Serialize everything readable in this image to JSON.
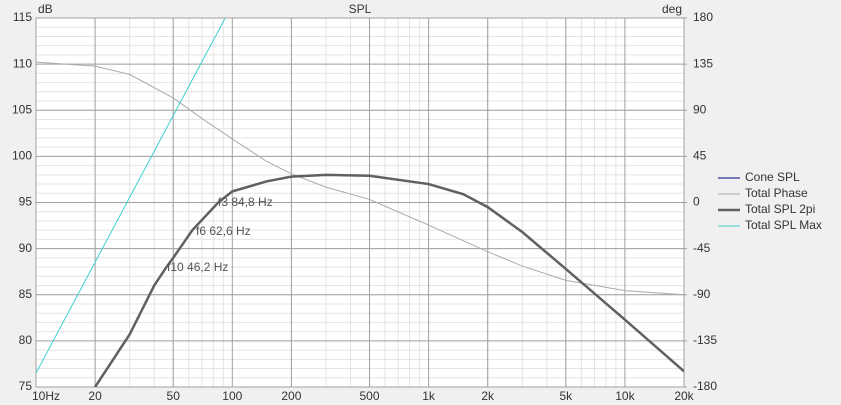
{
  "chart_data": {
    "type": "line",
    "title": "SPL",
    "y_unit": "dB",
    "y2_unit": "deg",
    "log_x": true,
    "grid": true,
    "minor_grid": true,
    "legend": "right",
    "xlim": [
      10,
      20000
    ],
    "xticks": [
      {
        "value": 10,
        "label": "10Hz"
      },
      20,
      50,
      100,
      200,
      500,
      {
        "value": 1000,
        "label": "1k"
      },
      {
        "value": 2000,
        "label": "2k"
      },
      {
        "value": 5000,
        "label": "5k"
      },
      {
        "value": 10000,
        "label": "10k"
      },
      {
        "value": 20000,
        "label": "20k"
      }
    ],
    "ylim": [
      75,
      115
    ],
    "yticks": [
      75,
      80,
      85,
      90,
      95,
      100,
      105,
      110,
      115
    ],
    "y2lim": [
      -180,
      180
    ],
    "y2ticks": [
      -180,
      -135,
      -90,
      -45,
      0,
      45,
      90,
      135,
      180
    ],
    "annotations": [
      "f3 84,8 Hz",
      "f6 62,6 Hz",
      "f10 46,2 Hz"
    ],
    "series": [
      {
        "name": "Cone SPL",
        "color": "#000080",
        "x": [],
        "values": []
      },
      {
        "name": "Total Phase",
        "color": "#aaaaaa",
        "axis": "y2",
        "x": [
          10,
          20,
          30,
          50,
          70,
          100,
          150,
          200,
          300,
          500,
          1000,
          2000,
          3000,
          5000,
          10000,
          20000
        ],
        "values": [
          137,
          133,
          125,
          102,
          82,
          62,
          40,
          28,
          15,
          3,
          -22,
          -48,
          -62,
          -76,
          -86,
          -90
        ]
      },
      {
        "name": "Total SPL 2pi",
        "color": "#606060",
        "x": [
          20,
          30,
          40,
          46.2,
          50,
          62.6,
          84.8,
          100,
          150,
          200,
          300,
          500,
          1000,
          1500,
          2000,
          3000,
          5000,
          10000,
          20000
        ],
        "values": [
          75,
          80.7,
          86,
          88,
          89,
          92,
          95,
          96.2,
          97.3,
          97.8,
          98,
          97.9,
          97,
          95.9,
          94.5,
          91.8,
          87.8,
          82.3,
          76.7
        ]
      },
      {
        "name": "Total SPL Max",
        "color": "#40d0d0",
        "x": [
          10,
          92
        ],
        "values": [
          76.5,
          115
        ]
      }
    ]
  }
}
